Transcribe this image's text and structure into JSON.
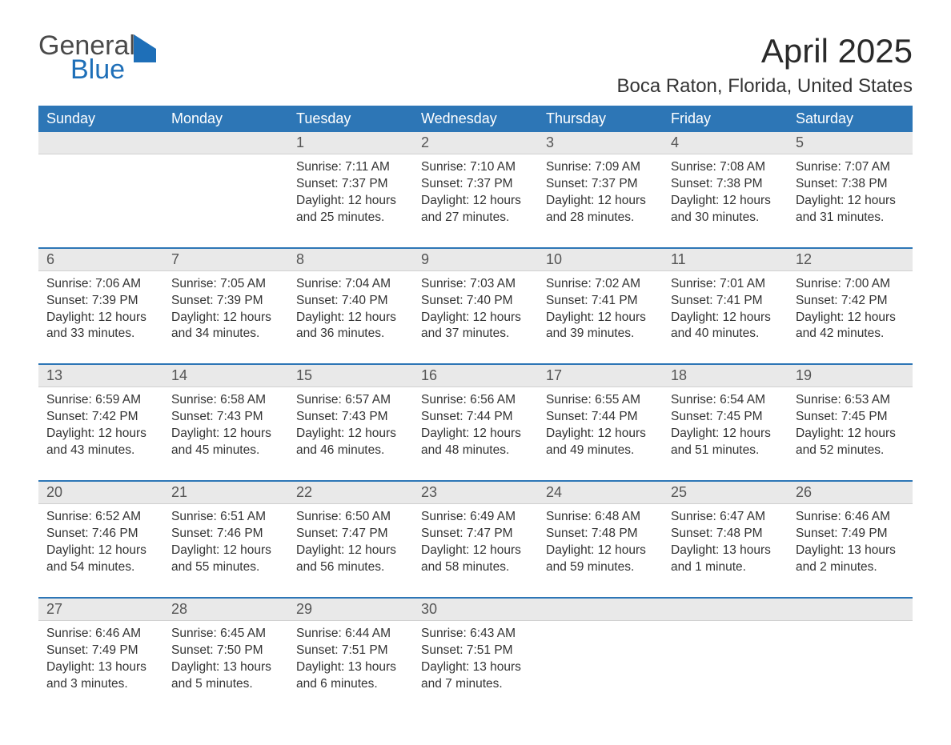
{
  "brand": {
    "general": "General",
    "blue": "Blue"
  },
  "title": "April 2025",
  "location": "Boca Raton, Florida, United States",
  "dow": [
    "Sunday",
    "Monday",
    "Tuesday",
    "Wednesday",
    "Thursday",
    "Friday",
    "Saturday"
  ],
  "colors": {
    "header_bg": "#2d76b6",
    "daynum_bg": "#e9e9e9",
    "rule": "#2d76b6"
  },
  "weeks": [
    [
      null,
      null,
      {
        "n": "1",
        "sr": "Sunrise: 7:11 AM",
        "ss": "Sunset: 7:37 PM",
        "dl1": "Daylight: 12 hours",
        "dl2": "and 25 minutes."
      },
      {
        "n": "2",
        "sr": "Sunrise: 7:10 AM",
        "ss": "Sunset: 7:37 PM",
        "dl1": "Daylight: 12 hours",
        "dl2": "and 27 minutes."
      },
      {
        "n": "3",
        "sr": "Sunrise: 7:09 AM",
        "ss": "Sunset: 7:37 PM",
        "dl1": "Daylight: 12 hours",
        "dl2": "and 28 minutes."
      },
      {
        "n": "4",
        "sr": "Sunrise: 7:08 AM",
        "ss": "Sunset: 7:38 PM",
        "dl1": "Daylight: 12 hours",
        "dl2": "and 30 minutes."
      },
      {
        "n": "5",
        "sr": "Sunrise: 7:07 AM",
        "ss": "Sunset: 7:38 PM",
        "dl1": "Daylight: 12 hours",
        "dl2": "and 31 minutes."
      }
    ],
    [
      {
        "n": "6",
        "sr": "Sunrise: 7:06 AM",
        "ss": "Sunset: 7:39 PM",
        "dl1": "Daylight: 12 hours",
        "dl2": "and 33 minutes."
      },
      {
        "n": "7",
        "sr": "Sunrise: 7:05 AM",
        "ss": "Sunset: 7:39 PM",
        "dl1": "Daylight: 12 hours",
        "dl2": "and 34 minutes."
      },
      {
        "n": "8",
        "sr": "Sunrise: 7:04 AM",
        "ss": "Sunset: 7:40 PM",
        "dl1": "Daylight: 12 hours",
        "dl2": "and 36 minutes."
      },
      {
        "n": "9",
        "sr": "Sunrise: 7:03 AM",
        "ss": "Sunset: 7:40 PM",
        "dl1": "Daylight: 12 hours",
        "dl2": "and 37 minutes."
      },
      {
        "n": "10",
        "sr": "Sunrise: 7:02 AM",
        "ss": "Sunset: 7:41 PM",
        "dl1": "Daylight: 12 hours",
        "dl2": "and 39 minutes."
      },
      {
        "n": "11",
        "sr": "Sunrise: 7:01 AM",
        "ss": "Sunset: 7:41 PM",
        "dl1": "Daylight: 12 hours",
        "dl2": "and 40 minutes."
      },
      {
        "n": "12",
        "sr": "Sunrise: 7:00 AM",
        "ss": "Sunset: 7:42 PM",
        "dl1": "Daylight: 12 hours",
        "dl2": "and 42 minutes."
      }
    ],
    [
      {
        "n": "13",
        "sr": "Sunrise: 6:59 AM",
        "ss": "Sunset: 7:42 PM",
        "dl1": "Daylight: 12 hours",
        "dl2": "and 43 minutes."
      },
      {
        "n": "14",
        "sr": "Sunrise: 6:58 AM",
        "ss": "Sunset: 7:43 PM",
        "dl1": "Daylight: 12 hours",
        "dl2": "and 45 minutes."
      },
      {
        "n": "15",
        "sr": "Sunrise: 6:57 AM",
        "ss": "Sunset: 7:43 PM",
        "dl1": "Daylight: 12 hours",
        "dl2": "and 46 minutes."
      },
      {
        "n": "16",
        "sr": "Sunrise: 6:56 AM",
        "ss": "Sunset: 7:44 PM",
        "dl1": "Daylight: 12 hours",
        "dl2": "and 48 minutes."
      },
      {
        "n": "17",
        "sr": "Sunrise: 6:55 AM",
        "ss": "Sunset: 7:44 PM",
        "dl1": "Daylight: 12 hours",
        "dl2": "and 49 minutes."
      },
      {
        "n": "18",
        "sr": "Sunrise: 6:54 AM",
        "ss": "Sunset: 7:45 PM",
        "dl1": "Daylight: 12 hours",
        "dl2": "and 51 minutes."
      },
      {
        "n": "19",
        "sr": "Sunrise: 6:53 AM",
        "ss": "Sunset: 7:45 PM",
        "dl1": "Daylight: 12 hours",
        "dl2": "and 52 minutes."
      }
    ],
    [
      {
        "n": "20",
        "sr": "Sunrise: 6:52 AM",
        "ss": "Sunset: 7:46 PM",
        "dl1": "Daylight: 12 hours",
        "dl2": "and 54 minutes."
      },
      {
        "n": "21",
        "sr": "Sunrise: 6:51 AM",
        "ss": "Sunset: 7:46 PM",
        "dl1": "Daylight: 12 hours",
        "dl2": "and 55 minutes."
      },
      {
        "n": "22",
        "sr": "Sunrise: 6:50 AM",
        "ss": "Sunset: 7:47 PM",
        "dl1": "Daylight: 12 hours",
        "dl2": "and 56 minutes."
      },
      {
        "n": "23",
        "sr": "Sunrise: 6:49 AM",
        "ss": "Sunset: 7:47 PM",
        "dl1": "Daylight: 12 hours",
        "dl2": "and 58 minutes."
      },
      {
        "n": "24",
        "sr": "Sunrise: 6:48 AM",
        "ss": "Sunset: 7:48 PM",
        "dl1": "Daylight: 12 hours",
        "dl2": "and 59 minutes."
      },
      {
        "n": "25",
        "sr": "Sunrise: 6:47 AM",
        "ss": "Sunset: 7:48 PM",
        "dl1": "Daylight: 13 hours",
        "dl2": "and 1 minute."
      },
      {
        "n": "26",
        "sr": "Sunrise: 6:46 AM",
        "ss": "Sunset: 7:49 PM",
        "dl1": "Daylight: 13 hours",
        "dl2": "and 2 minutes."
      }
    ],
    [
      {
        "n": "27",
        "sr": "Sunrise: 6:46 AM",
        "ss": "Sunset: 7:49 PM",
        "dl1": "Daylight: 13 hours",
        "dl2": "and 3 minutes."
      },
      {
        "n": "28",
        "sr": "Sunrise: 6:45 AM",
        "ss": "Sunset: 7:50 PM",
        "dl1": "Daylight: 13 hours",
        "dl2": "and 5 minutes."
      },
      {
        "n": "29",
        "sr": "Sunrise: 6:44 AM",
        "ss": "Sunset: 7:51 PM",
        "dl1": "Daylight: 13 hours",
        "dl2": "and 6 minutes."
      },
      {
        "n": "30",
        "sr": "Sunrise: 6:43 AM",
        "ss": "Sunset: 7:51 PM",
        "dl1": "Daylight: 13 hours",
        "dl2": "and 7 minutes."
      },
      null,
      null,
      null
    ]
  ]
}
